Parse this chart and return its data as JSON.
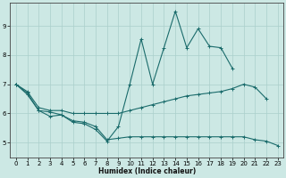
{
  "xlabel": "Humidex (Indice chaleur)",
  "xlim": [
    -0.5,
    23.5
  ],
  "ylim": [
    4.5,
    9.8
  ],
  "xticks": [
    0,
    1,
    2,
    3,
    4,
    5,
    6,
    7,
    8,
    9,
    10,
    11,
    12,
    13,
    14,
    15,
    16,
    17,
    18,
    19,
    20,
    21,
    22,
    23
  ],
  "yticks": [
    5,
    6,
    7,
    8,
    9
  ],
  "bg_color": "#cce8e4",
  "grid_color": "#aacfcb",
  "line_color": "#1a6b6b",
  "lines": [
    {
      "x": [
        0,
        1,
        2,
        3,
        4,
        5,
        6,
        7,
        8,
        9,
        10,
        11,
        12,
        13,
        14,
        15,
        16,
        17,
        18,
        19,
        20,
        21,
        22,
        23
      ],
      "y": [
        7.0,
        6.7,
        6.1,
        6.05,
        5.95,
        5.75,
        5.7,
        5.55,
        5.1,
        5.15,
        5.2,
        5.2,
        5.2,
        5.2,
        5.2,
        5.2,
        5.2,
        5.2,
        5.2,
        5.2,
        5.2,
        5.1,
        5.05,
        4.9
      ]
    },
    {
      "x": [
        0,
        1,
        2,
        3,
        4,
        5,
        6,
        7,
        8,
        9,
        10,
        11,
        12,
        13,
        14,
        15,
        16,
        17,
        18,
        19,
        20,
        21,
        22,
        23
      ],
      "y": [
        7.0,
        6.75,
        6.2,
        6.1,
        6.1,
        6.0,
        6.0,
        6.0,
        6.0,
        6.0,
        6.1,
        6.2,
        6.3,
        6.4,
        6.5,
        6.6,
        6.65,
        6.7,
        6.75,
        6.85,
        7.0,
        6.9,
        6.5,
        null
      ]
    },
    {
      "x": [
        0,
        1,
        2,
        3,
        4,
        5,
        6,
        7,
        8,
        9,
        10,
        11,
        12,
        13,
        14,
        15,
        16,
        17,
        18,
        19,
        20,
        21,
        22,
        23
      ],
      "y": [
        7.0,
        6.65,
        6.1,
        5.9,
        5.95,
        5.7,
        5.65,
        5.45,
        5.05,
        5.55,
        7.0,
        8.55,
        7.0,
        8.25,
        9.5,
        8.25,
        8.9,
        8.3,
        8.25,
        7.55,
        null,
        null,
        null,
        null
      ]
    }
  ]
}
